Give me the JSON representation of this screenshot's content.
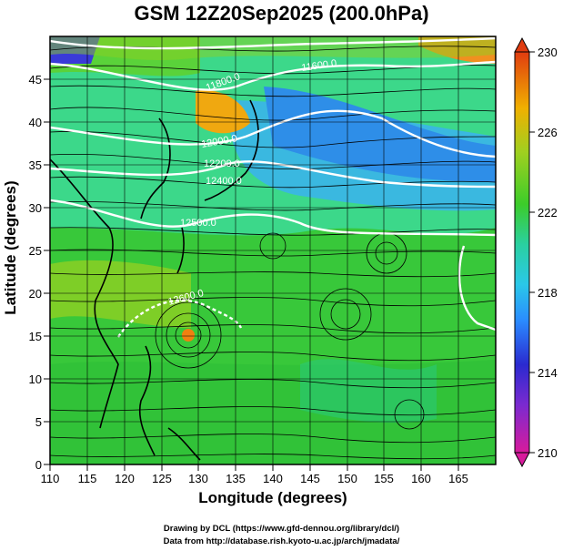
{
  "title": "GSM 12Z20Sep2025 (200.0hPa)",
  "xlabel": "Longitude (degrees)",
  "ylabel": "Latitude  (degrees)",
  "credit_line1": "Drawing by DCL (https://www.gfd-dennou.org/library/dcl/)",
  "credit_line2": "Data from http://database.rish.kyoto-u.ac.jp/arch/jmadata/",
  "chart_data": {
    "type": "heatmap",
    "x_axis": {
      "range": [
        110,
        170
      ],
      "ticks": [
        110,
        115,
        120,
        125,
        130,
        135,
        140,
        145,
        150,
        155,
        160,
        165
      ]
    },
    "y_axis": {
      "range": [
        0,
        50
      ],
      "ticks": [
        0,
        5,
        10,
        15,
        20,
        25,
        30,
        35,
        40,
        45
      ]
    },
    "colorbar": {
      "range": [
        210,
        230
      ],
      "ticks": [
        210,
        214,
        218,
        222,
        226,
        230
      ],
      "colors": [
        "#d81b9c",
        "#2a2ad0",
        "#2aa0ff",
        "#2ad0a0",
        "#3ccc2a",
        "#c8d020",
        "#f0a000",
        "#e03c10"
      ]
    },
    "contour_labels": [
      "11600.0",
      "11800.0",
      "12000.0",
      "12200.0",
      "12400.0",
      "12500.0",
      "12600.0"
    ],
    "grid": true
  }
}
